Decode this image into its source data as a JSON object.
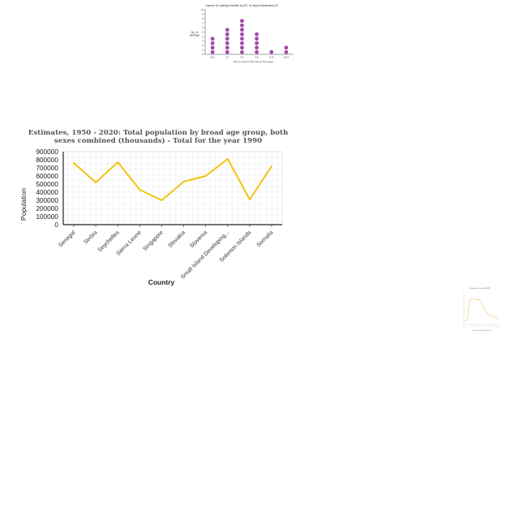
{
  "chart_data": [
    {
      "type": "scatter",
      "title": "Number of Landings Handled by ATC for Airport (Illustrative) #2",
      "xlabel": "Time in hours of the day (2 hour gap)",
      "ylabel": "No. of landings",
      "categories": [
        "00-2",
        "2-4",
        "4-6",
        "6-8",
        "8-10",
        "10-12"
      ],
      "values": [
        4,
        6,
        8,
        5,
        1,
        2
      ],
      "y_ticks": [
        "0",
        "1",
        "2",
        "3",
        "4",
        "5",
        "6",
        "7",
        "8",
        "9",
        "10"
      ],
      "ylim": [
        0,
        10
      ],
      "colors": {
        "dot": "#a24aa8"
      }
    },
    {
      "type": "line",
      "title": "Estimates, 1950 - 2020: Total population by broad age group, both sexes combined (thousands) - Total for the year 1990",
      "xlabel": "Country",
      "ylabel": "Population",
      "categories": [
        "Senegal",
        "Serbia",
        "Seychelles",
        "Sierra Leone",
        "Singapore",
        "Slovakia",
        "Slovenia",
        "Small Island Developing...",
        "Solomon Islands",
        "Somalia"
      ],
      "series": [
        {
          "values": [
            760000,
            520000,
            770000,
            430000,
            300000,
            530000,
            600000,
            810000,
            310000,
            720000
          ]
        }
      ],
      "y_ticks": [
        "0",
        "100000",
        "200000",
        "300000",
        "400000",
        "500000",
        "600000",
        "700000",
        "800000",
        "900000"
      ],
      "ylim": [
        0,
        900000
      ],
      "grid": true,
      "colors": {
        "line": "#f3c30f",
        "grid": "#dddddd",
        "axis": "#222222"
      }
    },
    {
      "type": "line",
      "title": "Illustrative chart of FOMO",
      "xlabel": "Time from first FOMO (hours)",
      "ylabel": "",
      "categories": [
        "0",
        "1",
        "2",
        "3",
        "4",
        "5",
        "6",
        "7",
        "8",
        "9",
        "10",
        "11"
      ],
      "series": [
        {
          "values": [
            10,
            12,
            78,
            80,
            75,
            77,
            62,
            40,
            28,
            25,
            22,
            18
          ]
        }
      ],
      "ylim": [
        0,
        100
      ],
      "colors": {
        "line": "#f1d38a"
      }
    }
  ]
}
